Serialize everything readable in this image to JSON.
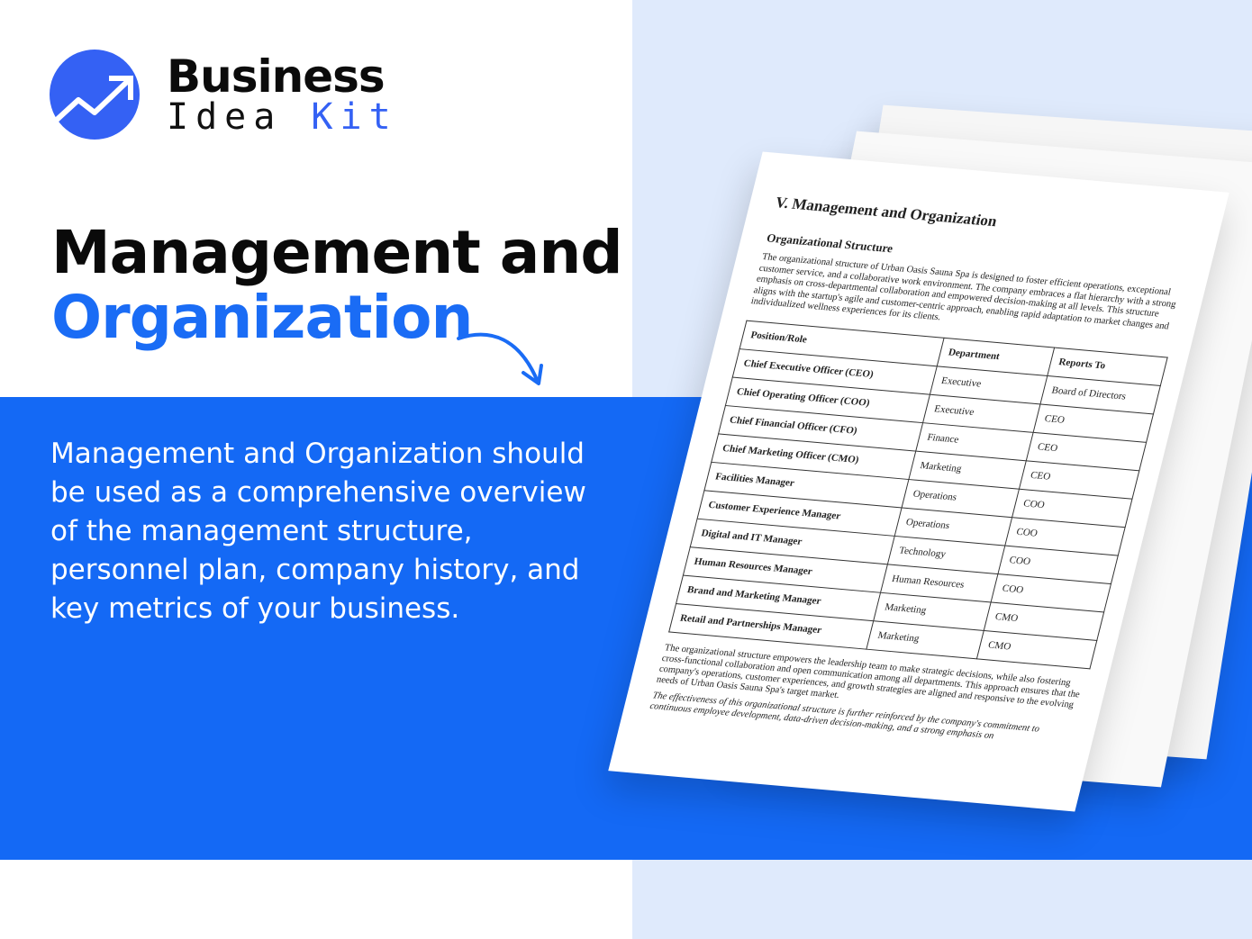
{
  "brand": {
    "line1": "Business",
    "line2_a": "Idea",
    "line2_b": "Kit",
    "accent": "#3461f4"
  },
  "headline": {
    "line1": "Management and",
    "line2": "Organization"
  },
  "description": "Management and Organization should be used as a comprehensive overview of the management structure, personnel plan, company history, and key metrics of your business.",
  "colors": {
    "band": "#1469f5",
    "right_bg": "#dfeafc",
    "headline_blue": "#1a6cf5"
  },
  "document": {
    "title": "V. Management and Organization",
    "subtitle": "Organizational Structure",
    "intro": "The organizational structure of Urban Oasis Sauna Spa is designed to foster efficient operations, exceptional customer service, and a collaborative work environment. The company embraces a flat hierarchy with a strong emphasis on cross-departmental collaboration and empowered decision-making at all levels. This structure aligns with the startup's agile and customer-centric approach, enabling rapid adaptation to market changes and individualized wellness experiences for its clients.",
    "table": {
      "headers": [
        "Position/Role",
        "Department",
        "Reports To"
      ],
      "rows": [
        [
          "Chief Executive Officer (CEO)",
          "Executive",
          "Board of Directors"
        ],
        [
          "Chief Operating Officer (COO)",
          "Executive",
          "CEO"
        ],
        [
          "Chief Financial Officer (CFO)",
          "Finance",
          "CEO"
        ],
        [
          "Chief Marketing Officer (CMO)",
          "Marketing",
          "CEO"
        ],
        [
          "Facilities Manager",
          "Operations",
          "COO"
        ],
        [
          "Customer Experience Manager",
          "Operations",
          "COO"
        ],
        [
          "Digital and IT Manager",
          "Technology",
          "COO"
        ],
        [
          "Human Resources Manager",
          "Human Resources",
          "COO"
        ],
        [
          "Brand and Marketing Manager",
          "Marketing",
          "CMO"
        ],
        [
          "Retail and Partnerships Manager",
          "Marketing",
          "CMO"
        ]
      ]
    },
    "closing": "The organizational structure empowers the leadership team to make strategic decisions, while also fostering cross-functional collaboration and open communication among all departments. This approach ensures that the company's operations, customer experiences, and growth strategies are aligned and responsive to the evolving needs of Urban Oasis Sauna Spa's target market.",
    "closing2": "The effectiveness of this organizational structure is further reinforced by the company's commitment to continuous employee development, data-driven decision-making, and a strong emphasis on"
  }
}
